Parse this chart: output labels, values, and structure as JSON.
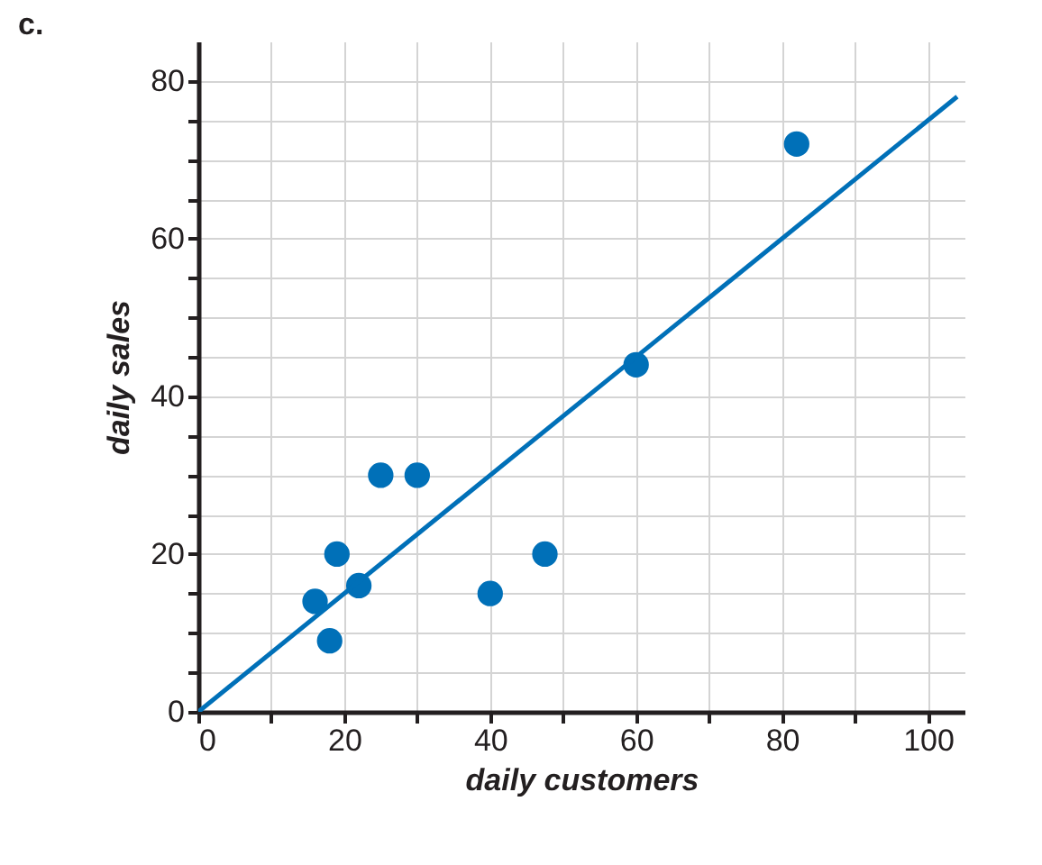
{
  "chart_data": {
    "type": "scatter",
    "xlabel": "daily customers",
    "ylabel": "daily sales",
    "annotations": [
      "c."
    ],
    "x": [
      16,
      18,
      19,
      22,
      25,
      30,
      40,
      47.5,
      60,
      82
    ],
    "series": [
      {
        "color": "#0070b8",
        "values": [
          14,
          9,
          20,
          16,
          30,
          30,
          15,
          20,
          44,
          72
        ]
      },
      {
        "type": "line",
        "color": "#0070b8",
        "marker": "none",
        "x": [
          0,
          104
        ],
        "values": [
          0,
          78
        ]
      }
    ],
    "xlim": [
      0,
      105
    ],
    "ylim": [
      0,
      85
    ],
    "xticks": [
      0,
      {
        "value": 10,
        "label": null
      },
      20,
      {
        "value": 30,
        "label": null
      },
      40,
      {
        "value": 50,
        "label": null
      },
      60,
      {
        "value": 70,
        "label": null
      },
      80,
      {
        "value": 90,
        "label": null
      },
      100
    ],
    "yticks": [
      0,
      {
        "value": 5,
        "label": null
      },
      {
        "value": 10,
        "label": null
      },
      {
        "value": 15,
        "label": null
      },
      20,
      {
        "value": 25,
        "label": null
      },
      {
        "value": 30,
        "label": null
      },
      {
        "value": 35,
        "label": null
      },
      40,
      {
        "value": 45,
        "label": null
      },
      {
        "value": 50,
        "label": null
      },
      {
        "value": 55,
        "label": null
      },
      60,
      {
        "value": 65,
        "label": null
      },
      {
        "value": 70,
        "label": null
      },
      {
        "value": 75,
        "label": null
      },
      80
    ],
    "grid": true,
    "marker": "circle"
  }
}
